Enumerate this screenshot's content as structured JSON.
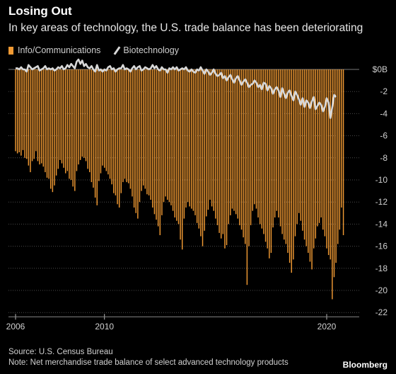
{
  "title": "Losing Out",
  "subtitle": "In key areas of technology, the U.S. trade balance has been deteriorating",
  "legend": {
    "info": "Info/Communications",
    "bio": "Biotechnology"
  },
  "footer": {
    "source": "Source: U.S. Census Bureau",
    "note": "Note: Net merchandise trade balance of select advanced technology products",
    "brand": "Bloomberg"
  },
  "colors": {
    "background": "#000000",
    "bars": "#f19a33",
    "line": "#d8d8d8",
    "grid": "#4a4a4a"
  },
  "chart_data": {
    "type": "bar",
    "title": "Losing Out",
    "subtitle": "In key areas of technology, the U.S. trade balance has been deteriorating",
    "ylim": [
      -22,
      0
    ],
    "yticks": [
      0,
      -2,
      -4,
      -6,
      -8,
      -10,
      -12,
      -14,
      -16,
      -18,
      -20,
      -22
    ],
    "ytick_labels": [
      "$0B",
      "-2",
      "-4",
      "-6",
      "-8",
      "-10",
      "-12",
      "-14",
      "-16",
      "-18",
      "-20",
      "-22"
    ],
    "y_axis_side": "right",
    "grid": "horizontal dotted",
    "legend_position": "top-left",
    "x_range": [
      "2006-01",
      "2021-03"
    ],
    "xticks": [
      "2006",
      "2010",
      "2020"
    ],
    "frequency": "monthly",
    "series": [
      {
        "name": "Info/Communications",
        "type": "bar",
        "values": [
          -7.4,
          -7.6,
          -7.5,
          -7.8,
          -7.3,
          -8.0,
          -8.1,
          -8.7,
          -9.3,
          -8.3,
          -8.1,
          -7.4,
          -8.3,
          -8.6,
          -8.5,
          -8.8,
          -9.3,
          -9.8,
          -9.9,
          -10.8,
          -11.1,
          -10.5,
          -9.6,
          -9.0,
          -8.2,
          -8.5,
          -8.9,
          -9.4,
          -9.2,
          -9.9,
          -10.0,
          -10.6,
          -11.0,
          -9.2,
          -8.6,
          -8.2,
          -7.9,
          -8.0,
          -8.3,
          -9.0,
          -9.3,
          -10.2,
          -10.7,
          -11.6,
          -12.3,
          -10.1,
          -9.4,
          -8.7,
          -8.9,
          -9.2,
          -9.5,
          -9.9,
          -10.4,
          -11.2,
          -11.4,
          -12.2,
          -12.5,
          -11.2,
          -10.2,
          -9.9,
          -10.2,
          -10.3,
          -10.8,
          -11.5,
          -12.5,
          -13.0,
          -13.5,
          -12.0,
          -11.0,
          -10.5,
          -10.8,
          -11.3,
          -11.4,
          -11.8,
          -12.5,
          -13.1,
          -13.6,
          -14.2,
          -15.0,
          -13.2,
          -12.0,
          -11.5,
          -11.8,
          -12.0,
          -12.3,
          -12.8,
          -13.4,
          -13.7,
          -14.0,
          -15.4,
          -16.3,
          -13.5,
          -12.5,
          -12.0,
          -12.4,
          -12.6,
          -12.8,
          -13.2,
          -13.9,
          -14.4,
          -15.1,
          -16.0,
          -14.6,
          -13.3,
          -12.7,
          -11.8,
          -12.4,
          -12.8,
          -13.5,
          -14.1,
          -14.8,
          -15.3,
          -14.9,
          -16.2,
          -15.9,
          -14.0,
          -13.2,
          -12.6,
          -12.8,
          -13.1,
          -13.5,
          -14.1,
          -14.5,
          -15.2,
          -15.8,
          -19.5,
          -16.0,
          -14.1,
          -12.8,
          -12.2,
          -12.6,
          -13.4,
          -14.0,
          -14.4,
          -14.9,
          -15.6,
          -16.2,
          -17.1,
          -16.6,
          -14.3,
          -13.4,
          -12.8,
          -13.4,
          -14.2,
          -14.9,
          -15.4,
          -15.8,
          -16.6,
          -17.5,
          -18.4,
          -17.2,
          -15.1,
          -14.0,
          -13.0,
          -13.7,
          -14.6,
          -15.4,
          -16.0,
          -16.6,
          -17.4,
          -18.1,
          -16.2,
          -15.3,
          -14.2,
          -13.9,
          -13.4,
          -14.5,
          -15.1,
          -16.2,
          -16.8,
          -17.2,
          -20.8,
          -18.8,
          -17.5,
          -15.8,
          -14.5,
          -12.5,
          -15.0
        ]
      },
      {
        "name": "Biotechnology",
        "type": "line",
        "values": [
          0.1,
          0.1,
          0.0,
          0.2,
          0.0,
          0.0,
          -0.2,
          0.4,
          0.2,
          0.0,
          0.1,
          0.2,
          0.3,
          -0.1,
          0.0,
          0.1,
          0.3,
          0.0,
          0.1,
          0.0,
          0.1,
          -0.1,
          0.0,
          0.2,
          0.1,
          0.3,
          0.0,
          0.1,
          0.4,
          0.2,
          0.5,
          0.3,
          0.1,
          0.7,
          0.9,
          0.5,
          0.8,
          0.3,
          0.5,
          0.2,
          0.1,
          0.3,
          0.0,
          -0.2,
          0.4,
          -0.1,
          0.0,
          -0.2,
          0.0,
          -0.1,
          0.2,
          0.3,
          0.0,
          0.1,
          -0.2,
          0.0,
          0.1,
          0.1,
          0.4,
          0.0,
          0.1,
          0.0,
          -0.2,
          0.1,
          0.3,
          0.0,
          0.2,
          0.3,
          -0.1,
          0.0,
          0.2,
          0.1,
          0.0,
          0.1,
          0.4,
          0.1,
          0.3,
          0.0,
          -0.1,
          0.2,
          0.0,
          0.0,
          -0.3,
          0.1,
          0.0,
          0.2,
          0.0,
          0.2,
          -0.1,
          0.0,
          0.1,
          0.0,
          0.2,
          -0.1,
          -0.2,
          0.0,
          -0.2,
          -0.3,
          0.0,
          -0.1,
          0.2,
          -0.1,
          -0.4,
          0.0,
          -0.2,
          -0.5,
          -0.3,
          0.0,
          -0.4,
          -0.6,
          -0.5,
          -0.3,
          -0.8,
          -0.6,
          -1.0,
          -0.7,
          -0.5,
          -0.9,
          -1.2,
          -0.8,
          -0.6,
          -1.0,
          -1.4,
          -1.1,
          -0.9,
          -1.2,
          -1.6,
          -1.4,
          -1.3,
          -1.0,
          -1.2,
          -1.6,
          -1.4,
          -1.8,
          -1.2,
          -1.3,
          -1.9,
          -1.5,
          -1.7,
          -2.2,
          -1.8,
          -1.6,
          -1.9,
          -2.5,
          -1.7,
          -2.2,
          -2.6,
          -2.1,
          -1.9,
          -2.4,
          -2.8,
          -2.0,
          -2.3,
          -2.7,
          -3.2,
          -2.6,
          -3.4,
          -2.8,
          -3.0,
          -3.5,
          -2.9,
          -2.5,
          -3.6,
          -3.3,
          -3.0,
          -3.2,
          -3.8,
          -3.4,
          -2.6,
          -3.0,
          -4.4,
          -3.4,
          -2.3,
          -2.5
        ]
      }
    ]
  }
}
